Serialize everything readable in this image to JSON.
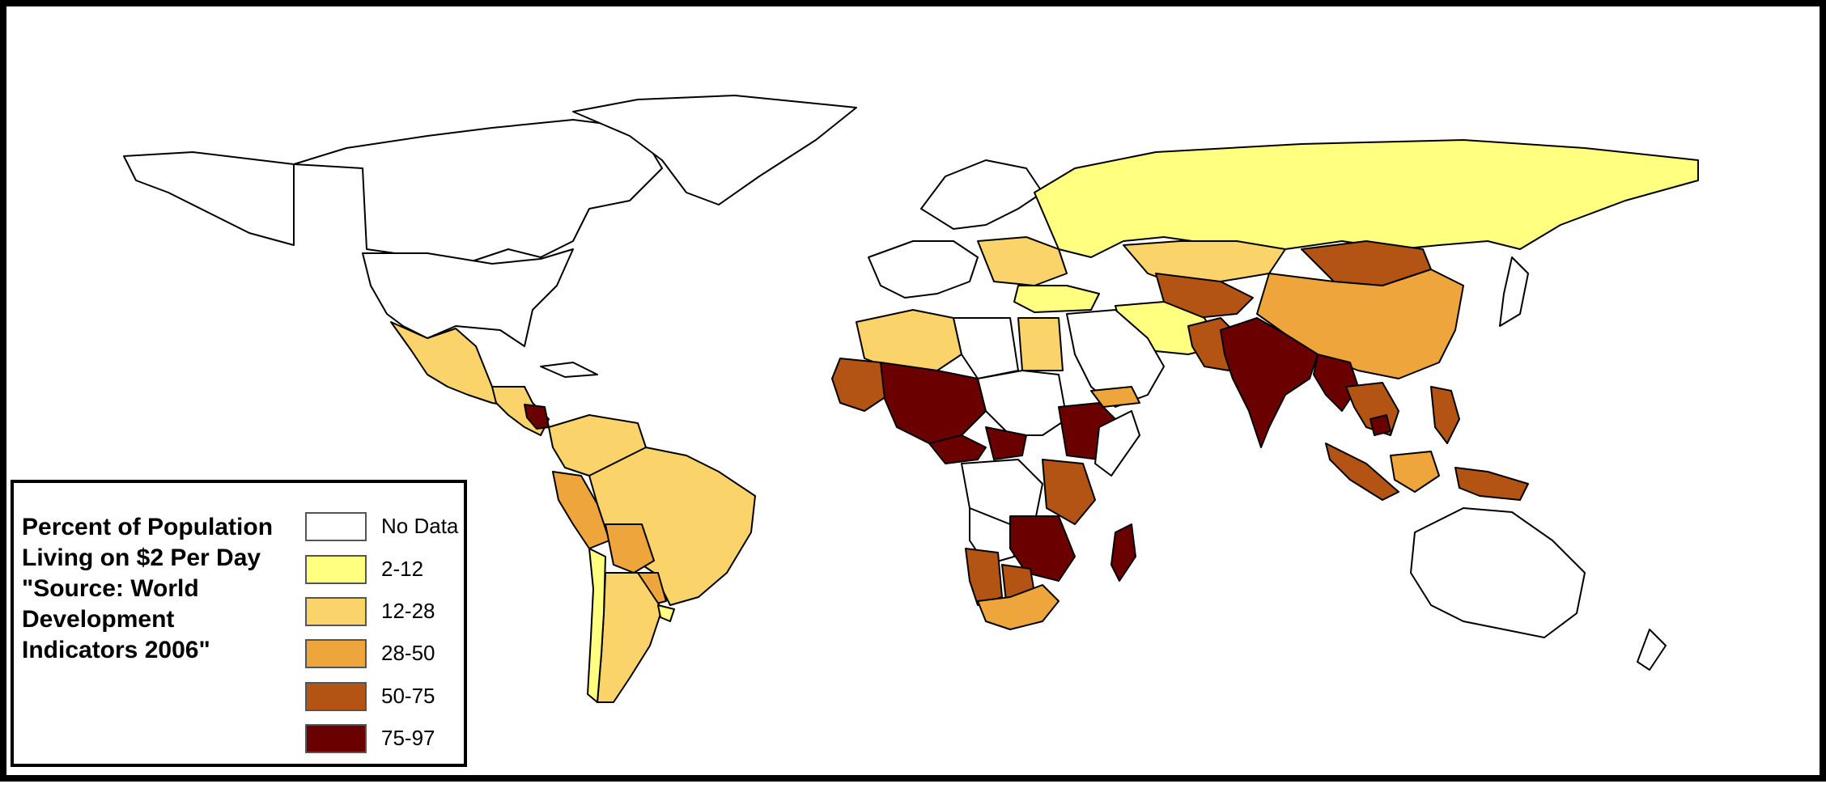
{
  "map": {
    "title": "Percent of Population Living on $2 Per Day \"Source: World Development Indicators 2006\"",
    "ocean_color": "#ffffff",
    "border_color": "#000000"
  },
  "legend": {
    "title_lines": [
      "Percent of Population",
      "Living on $2 Per Day",
      "\"Source: World",
      "Development",
      "Indicators 2006\""
    ],
    "classes": [
      {
        "label": "No Data",
        "color": "#ffffff"
      },
      {
        "label": "2-12",
        "color": "#ffff80"
      },
      {
        "label": "12-28",
        "color": "#fad46b"
      },
      {
        "label": "28-50",
        "color": "#eea63c"
      },
      {
        "label": "50-75",
        "color": "#b35414"
      },
      {
        "label": "75-97",
        "color": "#6b0000"
      }
    ]
  }
}
